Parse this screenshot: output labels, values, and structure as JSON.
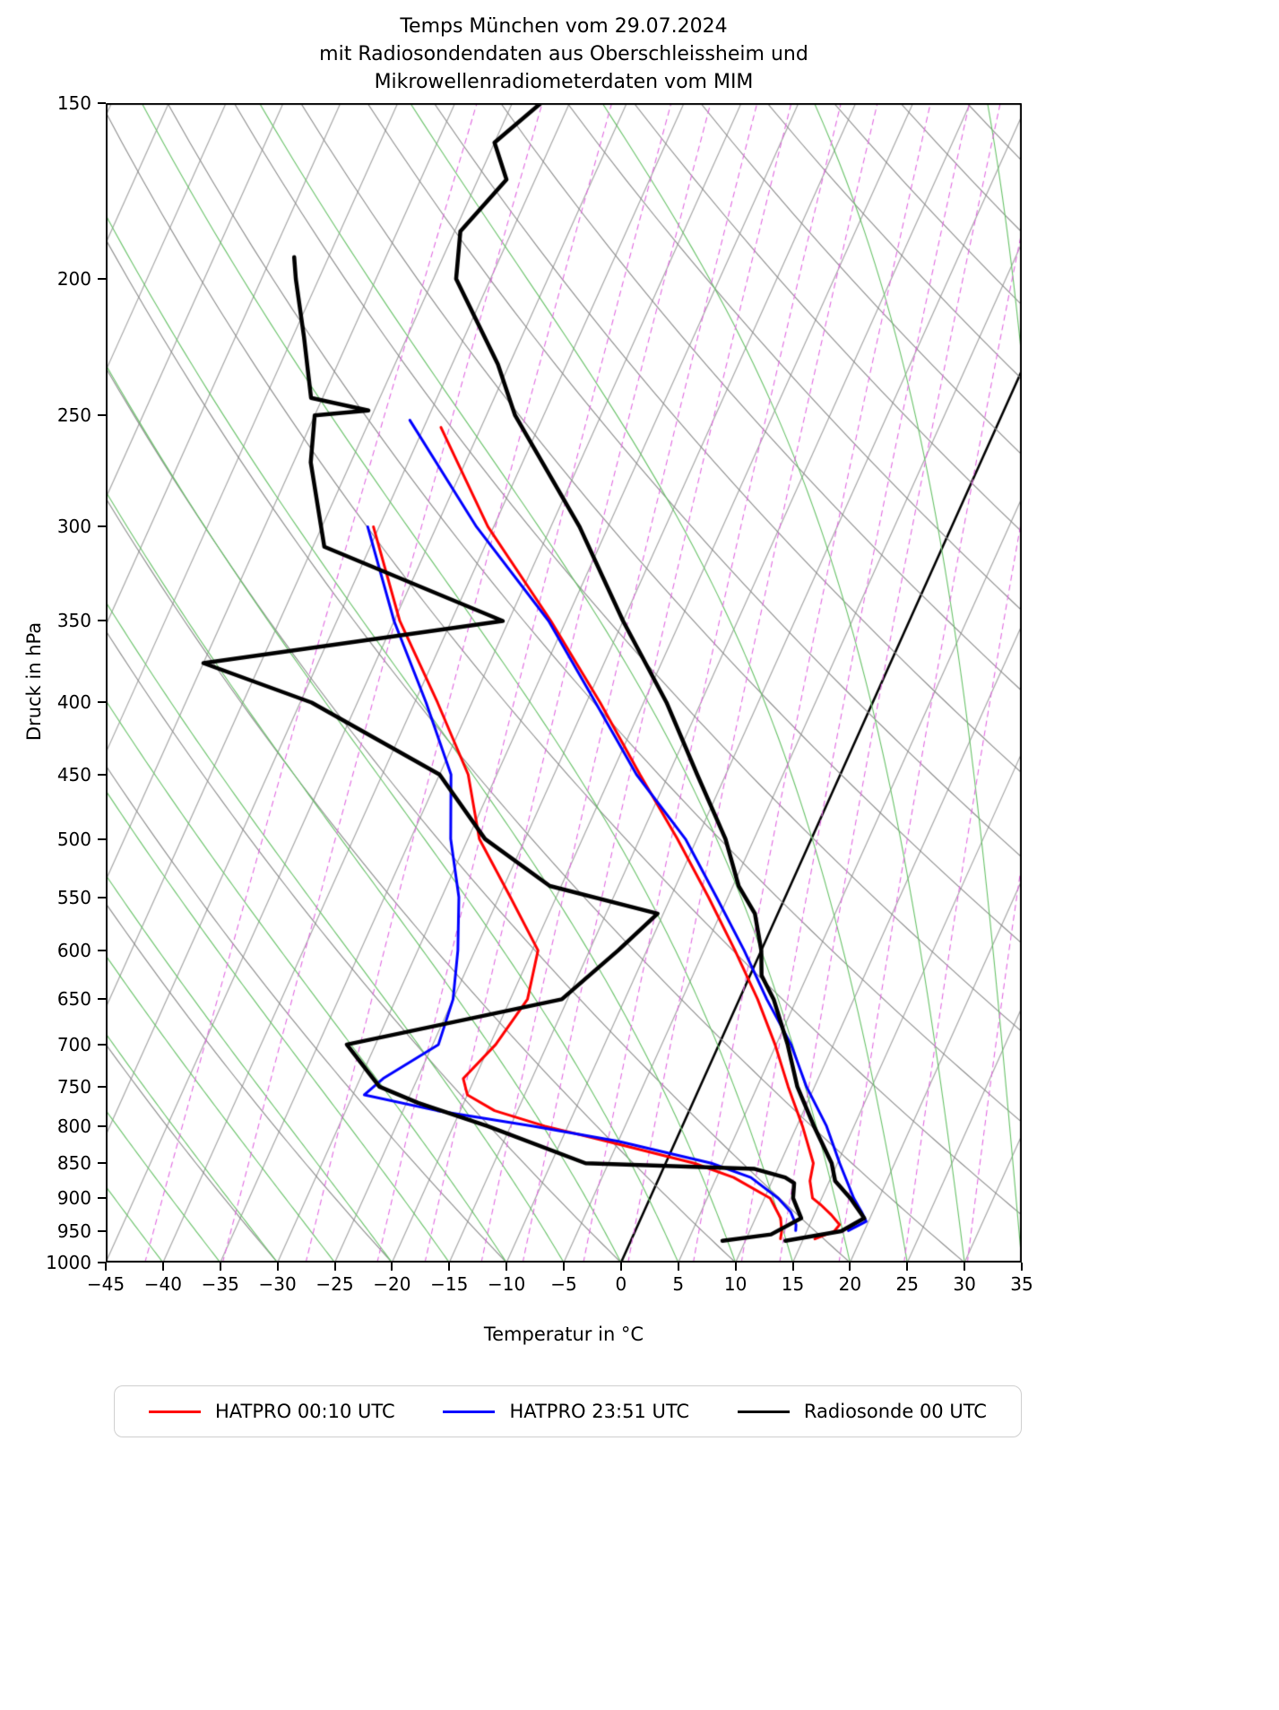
{
  "title": {
    "line1": "Temps München vom 29.07.2024",
    "line2": "mit Radiosondendaten aus Oberschleissheim und",
    "line3": "Mikrowellenradiometerdaten vom MIM"
  },
  "axes": {
    "x_label": "Temperatur in °C",
    "y_label": "Druck in hPa",
    "x_ticks": [
      -45,
      -40,
      -35,
      -30,
      -25,
      -20,
      -15,
      -10,
      -5,
      0,
      5,
      10,
      15,
      20,
      25,
      30,
      35
    ],
    "x_tick_labels": [
      "−45",
      "−40",
      "−35",
      "−30",
      "−25",
      "−20",
      "−15",
      "−10",
      "−5",
      "0",
      "5",
      "10",
      "15",
      "20",
      "25",
      "30",
      "35"
    ],
    "y_ticks": [
      150,
      200,
      250,
      300,
      350,
      400,
      450,
      500,
      550,
      600,
      650,
      700,
      750,
      800,
      850,
      900,
      950,
      1000
    ],
    "x_min": -45,
    "x_max": 35,
    "p_top": 150,
    "p_bottom": 1000,
    "skew_degC_over_full_height": 45.5
  },
  "background": {
    "isotherms": {
      "min": -120,
      "max": 40,
      "step": 5,
      "color": "#a8a8a8",
      "zero_line_color": "#000000"
    },
    "dry_adiabats": {
      "theta_min": -30,
      "theta_max": 180,
      "step": 10,
      "color": "#8c8c8c"
    },
    "moist_adiabats": {
      "t_min": -40,
      "t_max": 40,
      "step": 5,
      "color": "#69c269"
    },
    "mixing_ratio_g_kg": [
      0.1,
      0.2,
      0.4,
      0.7,
      1,
      1.5,
      2,
      3,
      4,
      6,
      8,
      10,
      14,
      20,
      28
    ],
    "mixing_ratio_color": "#e06ae0"
  },
  "legend": {
    "entries": [
      {
        "label": "HATPRO 00:10 UTC",
        "color": "#ff0000"
      },
      {
        "label": "HATPRO 23:51 UTC",
        "color": "#0000ff"
      },
      {
        "label": "Radiosonde 00 UTC",
        "color": "#000000"
      }
    ]
  },
  "chart_data": {
    "type": "line",
    "variant": "skew-t-log-p",
    "title": "Temps München vom 29.07.2024 mit Radiosondendaten aus Oberschleissheim und Mikrowellenradiometerdaten vom MIM",
    "xlabel": "Temperatur in °C",
    "ylabel": "Druck in hPa",
    "xlim": [
      -45,
      35
    ],
    "plim": [
      1000,
      150
    ],
    "grid": "skew-t background (isotherms, dry/moist adiabats, mixing ratio lines)",
    "legend_position": "bottom",
    "series": [
      {
        "name": "HATPRO 00:10 UTC temperature",
        "color": "#ff0000",
        "width": 3,
        "pressure_hPa": [
          962,
          950,
          940,
          925,
          910,
          900,
          875,
          850,
          800,
          750,
          700,
          650,
          600,
          550,
          500,
          450,
          400,
          350,
          300,
          255
        ],
        "temperature_C": [
          16.0,
          17.4,
          17.6,
          16.5,
          15.2,
          14.2,
          13.3,
          12.9,
          10.5,
          7.7,
          4.9,
          1.6,
          -2.3,
          -6.7,
          -11.7,
          -17.5,
          -23.8,
          -31.3,
          -40.5,
          -48.5
        ]
      },
      {
        "name": "HATPRO 00:10 UTC dewpoint",
        "color": "#ff0000",
        "width": 3,
        "pressure_hPa": [
          962,
          950,
          930,
          900,
          870,
          850,
          820,
          800,
          780,
          760,
          740,
          700,
          650,
          600,
          550,
          500,
          450,
          400,
          350,
          300
        ],
        "temperature_C": [
          13.0,
          12.8,
          12.2,
          10.5,
          6.5,
          2.5,
          -6.0,
          -12.0,
          -17.0,
          -20.0,
          -21.0,
          -19.5,
          -18.5,
          -19.5,
          -24.0,
          -29.0,
          -32.5,
          -38.0,
          -44.5,
          -50.5
        ]
      },
      {
        "name": "HATPRO 23:51 UTC temperature",
        "color": "#0000ff",
        "width": 3,
        "pressure_hPa": [
          949,
          935,
          920,
          900,
          850,
          800,
          750,
          700,
          650,
          600,
          550,
          500,
          450,
          400,
          350,
          300,
          252
        ],
        "temperature_C": [
          18.6,
          19.8,
          19.0,
          17.8,
          15.2,
          12.6,
          9.3,
          6.3,
          2.4,
          -1.5,
          -6.0,
          -11.0,
          -17.8,
          -24.2,
          -31.5,
          -41.5,
          -51.5
        ]
      },
      {
        "name": "HATPRO 23:51 UTC dewpoint",
        "color": "#0000ff",
        "width": 3,
        "pressure_hPa": [
          949,
          940,
          920,
          900,
          870,
          850,
          820,
          800,
          780,
          760,
          740,
          700,
          650,
          600,
          550,
          500,
          450,
          400,
          350,
          300
        ],
        "temperature_C": [
          14.0,
          13.8,
          12.8,
          11.2,
          8.0,
          4.0,
          -5.0,
          -13.0,
          -22.0,
          -29.0,
          -28.0,
          -24.5,
          -25.0,
          -26.5,
          -28.5,
          -31.5,
          -34.0,
          -39.0,
          -45.0,
          -51.0
        ]
      },
      {
        "name": "Radiosonde 00 UTC temperature",
        "color": "#000000",
        "width": 4.5,
        "pressure_hPa": [
          965,
          950,
          930,
          900,
          875,
          850,
          800,
          750,
          700,
          650,
          625,
          600,
          565,
          540,
          500,
          450,
          400,
          350,
          300,
          250,
          230,
          200,
          185,
          170,
          160,
          150
        ],
        "temperature_C": [
          13.5,
          18.0,
          19.5,
          17.5,
          15.5,
          14.5,
          11.5,
          8.5,
          6.0,
          3.0,
          1.0,
          0.0,
          -2.0,
          -4.5,
          -7.5,
          -12.5,
          -18.0,
          -25.0,
          -32.5,
          -42.5,
          -46.0,
          -53.0,
          -54.5,
          -52.5,
          -55.0,
          -52.5
        ]
      },
      {
        "name": "Radiosonde 00 UTC dewpoint",
        "color": "#000000",
        "width": 4.5,
        "pressure_hPa": [
          965,
          955,
          930,
          900,
          878,
          870,
          858,
          850,
          800,
          770,
          750,
          700,
          650,
          600,
          565,
          540,
          500,
          450,
          400,
          375,
          350,
          310,
          270,
          250,
          248,
          243,
          220,
          200,
          193
        ],
        "temperature_C": [
          8.0,
          12.0,
          14.0,
          12.5,
          12.0,
          11.0,
          8.0,
          -7.0,
          -17.0,
          -24.0,
          -28.0,
          -32.5,
          -15.5,
          -12.5,
          -10.5,
          -21.0,
          -28.5,
          -35.0,
          -49.0,
          -60.0,
          -35.5,
          -54.0,
          -58.5,
          -60.0,
          -55.5,
          -61.0,
          -64.0,
          -67.0,
          -68.0
        ]
      }
    ]
  }
}
